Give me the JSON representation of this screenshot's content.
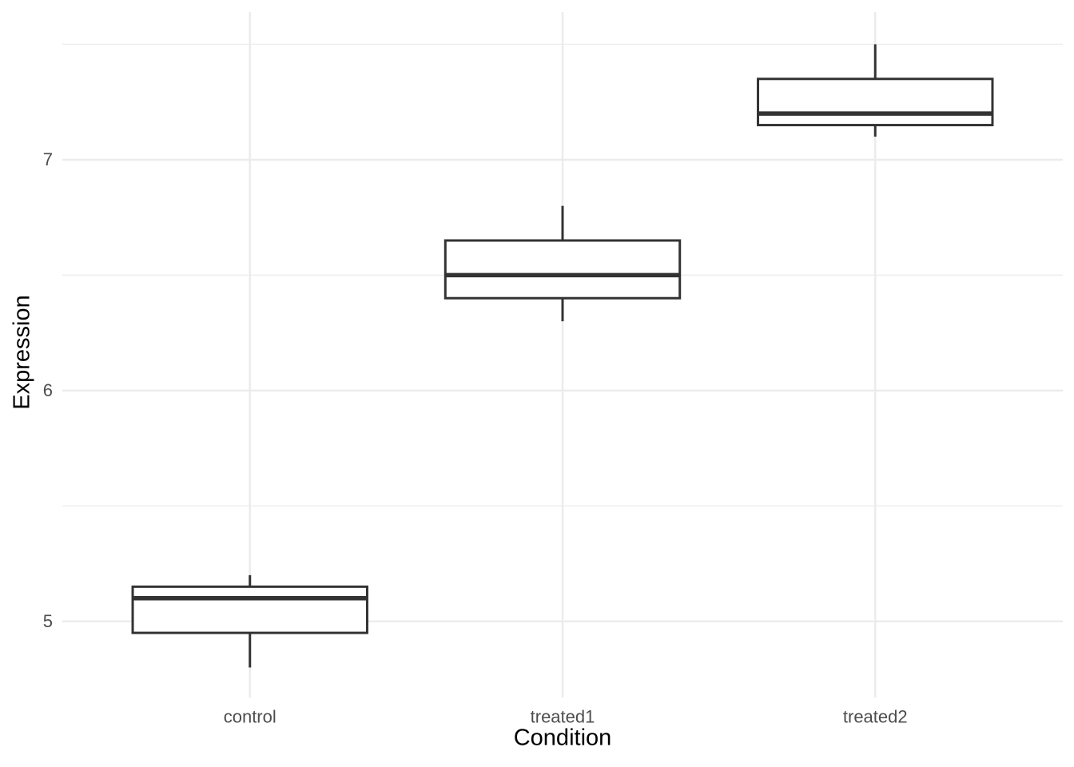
{
  "chart_data": {
    "type": "boxplot",
    "xlabel": "Condition",
    "ylabel": "Expression",
    "categories": [
      "control",
      "treated1",
      "treated2"
    ],
    "series": [
      {
        "name": "control",
        "min": 4.8,
        "q1": 4.95,
        "median": 5.1,
        "q3": 5.15,
        "max": 5.2
      },
      {
        "name": "treated1",
        "min": 6.3,
        "q1": 6.4,
        "median": 6.5,
        "q3": 6.65,
        "max": 6.8
      },
      {
        "name": "treated2",
        "min": 7.1,
        "q1": 7.15,
        "median": 7.2,
        "q3": 7.35,
        "max": 7.5
      }
    ],
    "y_axis": {
      "major_ticks": [
        5,
        6,
        7
      ],
      "minor_ticks": [
        5.5,
        6.5,
        7.5
      ],
      "range": [
        4.67,
        7.64
      ]
    },
    "x_axis": {
      "tick_labels": [
        "control",
        "treated1",
        "treated2"
      ]
    },
    "grid": "major+minor horizontal, major vertical at categories",
    "legend": false,
    "box_width_fraction": 0.75,
    "colors": {
      "box_stroke": "#333333",
      "box_fill": "#FFFFFF",
      "grid_major": "#EBEBEB",
      "grid_minor": "#EDEDED",
      "tick_label": "#4D4D4D",
      "axis_title": "#000000",
      "background": "#FFFFFF"
    }
  }
}
